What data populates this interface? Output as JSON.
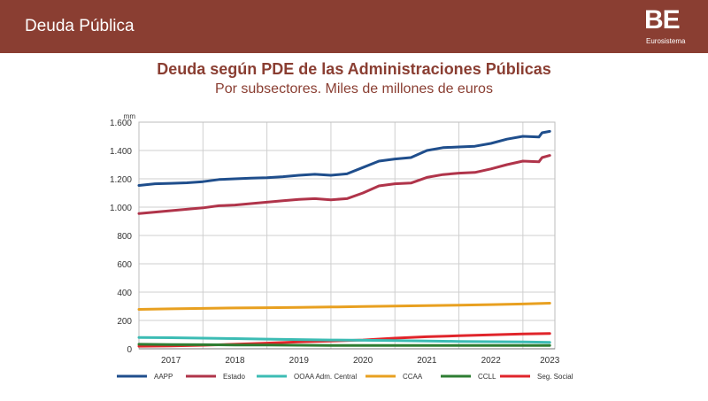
{
  "header": {
    "title": "Deuda Pública"
  },
  "logo": {
    "mark": "BE",
    "subtitle": "Eurosistema"
  },
  "chart_data": {
    "type": "line",
    "title": "Deuda según PDE de las Administraciones Públicas",
    "subtitle": "Por subsectores. Miles de millones de euros",
    "ylabel": "mm",
    "ylim": [
      0,
      1600
    ],
    "yticks": [
      0,
      200,
      400,
      600,
      800,
      1000,
      1200,
      1400,
      1600
    ],
    "ytick_labels": [
      "0",
      "200",
      "400",
      "600",
      "800",
      "1.000",
      "1.200",
      "1.400",
      "1.600"
    ],
    "xlim": [
      2016.5,
      2023.0
    ],
    "xgrid": [
      2017.5,
      2018.5,
      2019.5,
      2020.5,
      2021.5,
      2022.5
    ],
    "x_labels": [
      {
        "label": "2017",
        "x": 2017.0
      },
      {
        "label": "2018",
        "x": 2018.0
      },
      {
        "label": "2019",
        "x": 2019.0
      },
      {
        "label": "2020",
        "x": 2020.0
      },
      {
        "label": "2021",
        "x": 2021.0
      },
      {
        "label": "2022",
        "x": 2022.0
      },
      {
        "label": "2023",
        "x": 2022.92
      }
    ],
    "grid": true,
    "legend_position": "bottom",
    "series": [
      {
        "name": "AAPP",
        "color": "#1f4e8c",
        "points": [
          [
            2016.5,
            1153
          ],
          [
            2016.75,
            1165
          ],
          [
            2017.0,
            1168
          ],
          [
            2017.25,
            1172
          ],
          [
            2017.5,
            1180
          ],
          [
            2017.75,
            1195
          ],
          [
            2018.0,
            1200
          ],
          [
            2018.25,
            1205
          ],
          [
            2018.5,
            1208
          ],
          [
            2018.75,
            1215
          ],
          [
            2019.0,
            1225
          ],
          [
            2019.25,
            1232
          ],
          [
            2019.5,
            1225
          ],
          [
            2019.75,
            1235
          ],
          [
            2020.0,
            1280
          ],
          [
            2020.25,
            1325
          ],
          [
            2020.5,
            1340
          ],
          [
            2020.75,
            1350
          ],
          [
            2021.0,
            1400
          ],
          [
            2021.25,
            1420
          ],
          [
            2021.5,
            1425
          ],
          [
            2021.75,
            1430
          ],
          [
            2022.0,
            1450
          ],
          [
            2022.25,
            1480
          ],
          [
            2022.5,
            1500
          ],
          [
            2022.75,
            1495
          ],
          [
            2022.8,
            1525
          ],
          [
            2022.92,
            1535
          ]
        ]
      },
      {
        "name": "Estado",
        "color": "#b0344a",
        "points": [
          [
            2016.5,
            955
          ],
          [
            2016.75,
            965
          ],
          [
            2017.0,
            975
          ],
          [
            2017.25,
            985
          ],
          [
            2017.5,
            995
          ],
          [
            2017.75,
            1010
          ],
          [
            2018.0,
            1015
          ],
          [
            2018.25,
            1025
          ],
          [
            2018.5,
            1035
          ],
          [
            2018.75,
            1045
          ],
          [
            2019.0,
            1055
          ],
          [
            2019.25,
            1060
          ],
          [
            2019.5,
            1052
          ],
          [
            2019.75,
            1060
          ],
          [
            2020.0,
            1100
          ],
          [
            2020.25,
            1150
          ],
          [
            2020.5,
            1165
          ],
          [
            2020.75,
            1170
          ],
          [
            2021.0,
            1210
          ],
          [
            2021.25,
            1230
          ],
          [
            2021.5,
            1240
          ],
          [
            2021.75,
            1245
          ],
          [
            2022.0,
            1270
          ],
          [
            2022.25,
            1300
          ],
          [
            2022.5,
            1325
          ],
          [
            2022.75,
            1320
          ],
          [
            2022.8,
            1350
          ],
          [
            2022.92,
            1365
          ]
        ]
      },
      {
        "name": "OOAA Adm. Central",
        "color": "#3cbcb4",
        "points": [
          [
            2016.5,
            80
          ],
          [
            2017.0,
            78
          ],
          [
            2017.5,
            75
          ],
          [
            2018.0,
            72
          ],
          [
            2018.5,
            68
          ],
          [
            2019.0,
            65
          ],
          [
            2019.5,
            62
          ],
          [
            2020.0,
            60
          ],
          [
            2020.5,
            58
          ],
          [
            2021.0,
            55
          ],
          [
            2021.5,
            52
          ],
          [
            2022.0,
            50
          ],
          [
            2022.5,
            48
          ],
          [
            2022.92,
            45
          ]
        ]
      },
      {
        "name": "CCAA",
        "color": "#e8a020",
        "points": [
          [
            2016.5,
            278
          ],
          [
            2017.0,
            282
          ],
          [
            2017.5,
            285
          ],
          [
            2018.0,
            288
          ],
          [
            2018.5,
            290
          ],
          [
            2019.0,
            292
          ],
          [
            2019.5,
            295
          ],
          [
            2020.0,
            298
          ],
          [
            2020.5,
            302
          ],
          [
            2021.0,
            305
          ],
          [
            2021.5,
            308
          ],
          [
            2022.0,
            312
          ],
          [
            2022.5,
            316
          ],
          [
            2022.92,
            322
          ]
        ]
      },
      {
        "name": "CCLL",
        "color": "#2e7d32",
        "points": [
          [
            2016.5,
            32
          ],
          [
            2017.0,
            30
          ],
          [
            2017.5,
            29
          ],
          [
            2018.0,
            27
          ],
          [
            2018.5,
            26
          ],
          [
            2019.0,
            25
          ],
          [
            2019.5,
            24
          ],
          [
            2020.0,
            23
          ],
          [
            2020.5,
            23
          ],
          [
            2021.0,
            23
          ],
          [
            2021.5,
            23
          ],
          [
            2022.0,
            23
          ],
          [
            2022.5,
            23
          ],
          [
            2022.92,
            23
          ]
        ]
      },
      {
        "name": "Seg. Social",
        "color": "#e0252b",
        "points": [
          [
            2016.5,
            18
          ],
          [
            2017.0,
            20
          ],
          [
            2017.5,
            25
          ],
          [
            2018.0,
            32
          ],
          [
            2018.5,
            40
          ],
          [
            2019.0,
            48
          ],
          [
            2019.5,
            55
          ],
          [
            2020.0,
            62
          ],
          [
            2020.5,
            75
          ],
          [
            2021.0,
            85
          ],
          [
            2021.5,
            92
          ],
          [
            2022.0,
            98
          ],
          [
            2022.5,
            105
          ],
          [
            2022.92,
            108
          ]
        ]
      }
    ]
  }
}
